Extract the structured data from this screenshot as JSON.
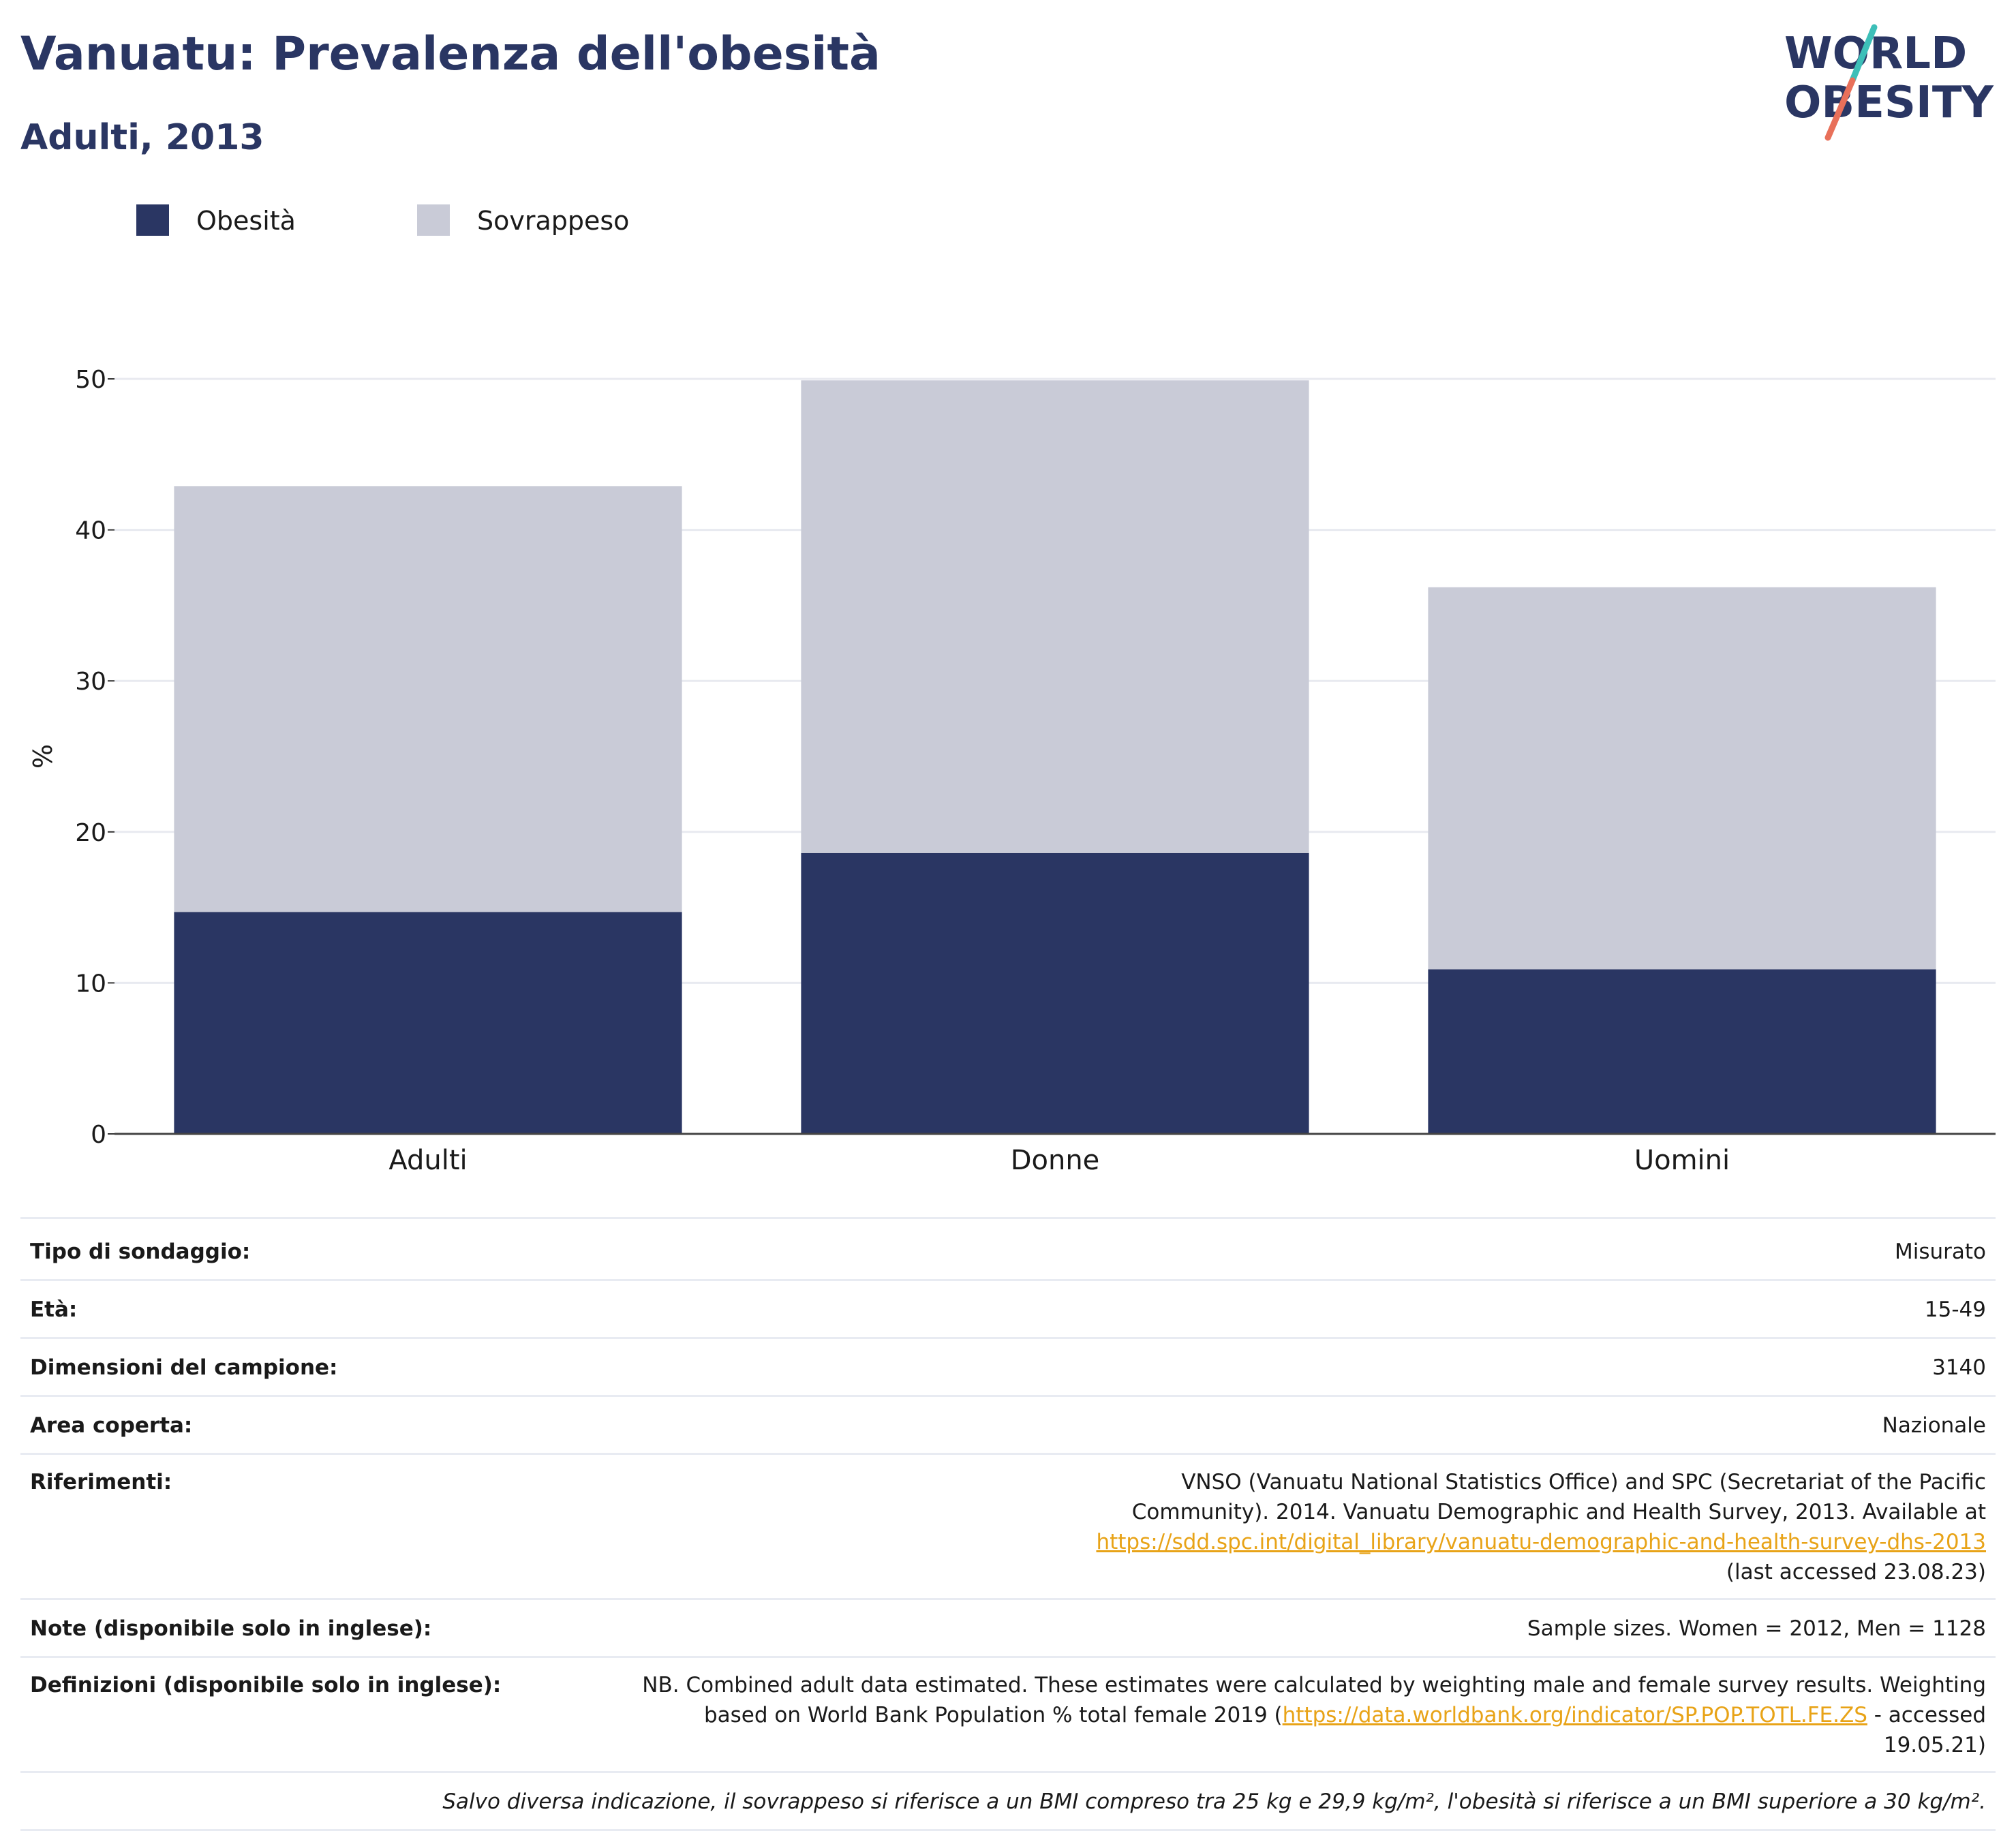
{
  "header": {
    "title": "Vanuatu: Prevalenza dell'obesità",
    "subtitle": "Adulti, 2013"
  },
  "logo": {
    "line1": "WORLD",
    "line2": "OBESITY",
    "accent_teal": "#3dbfb8",
    "accent_coral": "#e8705a",
    "text_color": "#2a3663"
  },
  "legend": [
    {
      "label": "Obesità",
      "color": "#2a3663"
    },
    {
      "label": "Sovrappeso",
      "color": "#c9cbd7"
    }
  ],
  "chart_data": {
    "type": "bar",
    "stacked": true,
    "categories": [
      "Adulti",
      "Donne",
      "Uomini"
    ],
    "series": [
      {
        "name": "Obesità",
        "values": [
          14.7,
          18.6,
          10.9
        ],
        "color": "#2a3663"
      },
      {
        "name": "Sovrappeso",
        "values": [
          28.2,
          31.3,
          25.3
        ],
        "color": "#c9cbd7"
      }
    ],
    "totals": [
      42.9,
      49.9,
      36.2
    ],
    "ylabel": "%",
    "ylim": [
      0,
      50
    ],
    "yticks": [
      0,
      10,
      20,
      30,
      40,
      50
    ],
    "grid": true,
    "legend_position": "top-left"
  },
  "info": {
    "rows": [
      {
        "key": "Tipo di sondaggio:",
        "value": "Misurato"
      },
      {
        "key": "Età:",
        "value": "15-49"
      },
      {
        "key": "Dimensioni del campione:",
        "value": "3140"
      },
      {
        "key": "Area coperta:",
        "value": "Nazionale"
      },
      {
        "key": "Riferimenti:",
        "pre": "VNSO (Vanuatu National Statistics Office) and SPC (Secretariat of the Pacific Community). 2014. Vanuatu Demographic and Health Survey, 2013. Available at ",
        "link": "https://sdd.spc.int/digital_library/vanuatu-demographic-and-health-survey-dhs-2013",
        "post": " (last accessed 23.08.23)"
      },
      {
        "key": "Note (disponibile solo in inglese):",
        "value": "Sample sizes. Women = 2012, Men = 1128"
      },
      {
        "key": "Definizioni (disponibile solo in inglese):",
        "pre": "NB. Combined adult data estimated. These estimates were calculated by weighting male and female survey results. Weighting based on World Bank Population % total female 2019 (",
        "link": "https://data.worldbank.org/indicator/SP.POP.TOTL.FE.ZS",
        "post": " - accessed 19.05.21)"
      }
    ],
    "footnote": "Salvo diversa indicazione, il sovrappeso si riferisce a un BMI compreso tra 25 kg e 29,9 kg/m², l'obesità si riferisce a un BMI superiore a 30 kg/m²."
  }
}
